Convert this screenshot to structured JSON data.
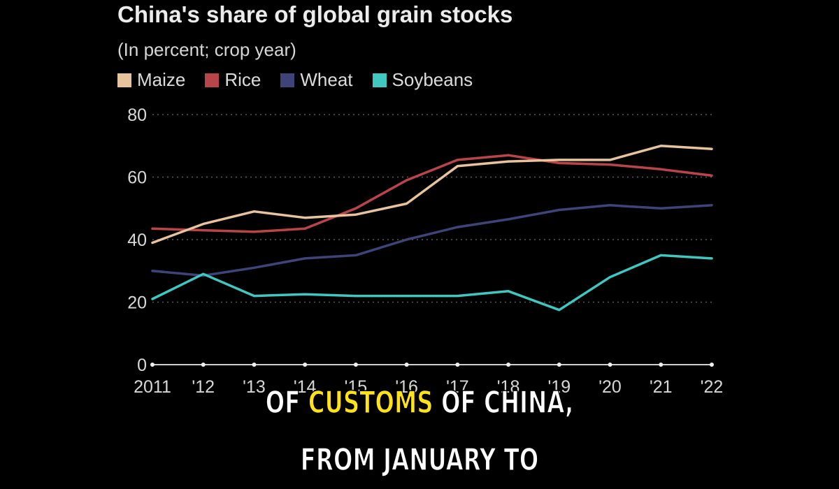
{
  "chart_data": {
    "type": "line",
    "title": "China's share of global grain stocks",
    "subtitle": "(In percent; crop year)",
    "x": [
      "2011",
      "'12",
      "'13",
      "'14",
      "'15",
      "'16",
      "'17",
      "'18",
      "'19",
      "'20",
      "'21",
      "'22"
    ],
    "ylim": [
      0,
      80
    ],
    "yticks": [
      0,
      20,
      40,
      60,
      80
    ],
    "grid": true,
    "legend_position": "top-left",
    "series": [
      {
        "name": "Maize",
        "color": "#e8c49e",
        "values": [
          39,
          45,
          49,
          47,
          48,
          51.5,
          63.5,
          65,
          65.5,
          65.5,
          70,
          69
        ]
      },
      {
        "name": "Rice",
        "color": "#b84549",
        "values": [
          43.5,
          43,
          42.5,
          43.5,
          50,
          59,
          65.5,
          67,
          64.5,
          64,
          62.5,
          60.5
        ]
      },
      {
        "name": "Wheat",
        "color": "#3f4478",
        "values": [
          30,
          28.5,
          31,
          34,
          35,
          40,
          44,
          46.5,
          49.5,
          51,
          50,
          51
        ]
      },
      {
        "name": "Soybeans",
        "color": "#3fc7c0",
        "values": [
          21,
          29,
          22,
          22.5,
          22,
          22,
          22,
          23.5,
          17.5,
          28,
          35,
          34
        ]
      }
    ]
  },
  "captions": {
    "line1_pre": "OF ",
    "line1_highlight": "CUSTOMS",
    "line1_post": " OF CHINA,",
    "line2": "FROM JANUARY TO"
  }
}
